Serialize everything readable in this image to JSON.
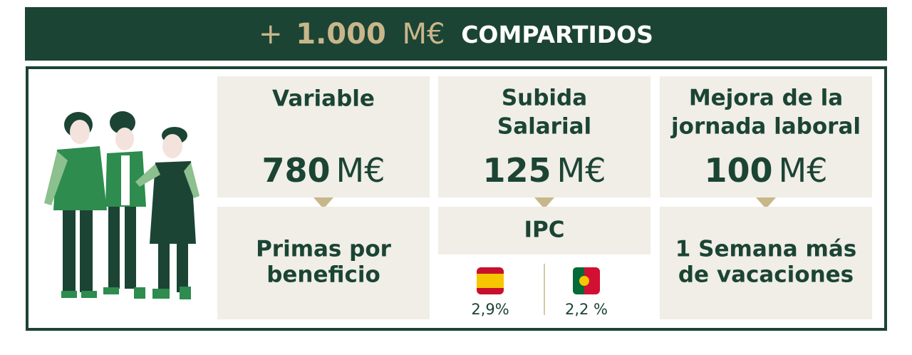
{
  "header": {
    "plus": "+",
    "amount": "1.000",
    "unit": "M€",
    "label": "COMPARTIDOS"
  },
  "cards": [
    {
      "title_lines": [
        "Variable"
      ],
      "amount": "780",
      "unit": "M€",
      "detail_lines": [
        "Primas por",
        "beneficio"
      ]
    },
    {
      "title_lines": [
        "Subida",
        "Salarial"
      ],
      "amount": "125",
      "unit": "M€",
      "detail_lines": [
        "IPC"
      ],
      "rates": [
        "2,9%",
        "2,2 %"
      ]
    },
    {
      "title_lines": [
        "Mejora de la",
        "jornada laboral"
      ],
      "amount": "100",
      "unit": "M€",
      "detail_lines": [
        "1 Semana más",
        "de vacaciones"
      ]
    }
  ]
}
